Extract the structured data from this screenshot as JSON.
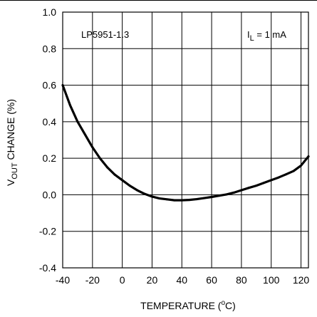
{
  "chart_data": {
    "type": "line",
    "xlabel_prefix": "TEMPERATURE (",
    "xlabel_sup": "o",
    "xlabel_suffix": "C)",
    "ylabel_main": "V",
    "ylabel_sub": "OUT",
    "ylabel_rest": " CHANGE (%)",
    "xlim": [
      -40,
      125
    ],
    "ylim": [
      -0.4,
      1.0
    ],
    "grid": true,
    "x_ticks": [
      -40,
      -20,
      0,
      20,
      40,
      60,
      80,
      100,
      120
    ],
    "x_tick_labels": [
      "-40",
      "-20",
      "0",
      "20",
      "40",
      "60",
      "80",
      "100",
      "120"
    ],
    "y_ticks": [
      -0.4,
      -0.2,
      0.0,
      0.2,
      0.4,
      0.6,
      0.8,
      1.0
    ],
    "y_tick_labels": [
      "-0.4",
      "-0.2",
      "0.0",
      "0.2",
      "0.4",
      "0.6",
      "0.8",
      "1.0"
    ],
    "annotations": {
      "device": "LP5951-1.3",
      "condition_main": "I",
      "condition_sub": "L",
      "condition_rest": " = 1 mA"
    },
    "series": [
      {
        "x": [
          -40,
          -35,
          -30,
          -25,
          -20,
          -15,
          -10,
          -5,
          0,
          5,
          10,
          15,
          20,
          25,
          30,
          35,
          40,
          45,
          50,
          55,
          60,
          65,
          70,
          75,
          80,
          85,
          90,
          95,
          100,
          105,
          110,
          115,
          120,
          125
        ],
        "y": [
          0.6,
          0.49,
          0.4,
          0.33,
          0.26,
          0.2,
          0.15,
          0.11,
          0.08,
          0.05,
          0.025,
          0.005,
          -0.01,
          -0.02,
          -0.025,
          -0.03,
          -0.03,
          -0.028,
          -0.024,
          -0.018,
          -0.012,
          -0.005,
          0.002,
          0.012,
          0.025,
          0.038,
          0.05,
          0.065,
          0.08,
          0.095,
          0.112,
          0.13,
          0.16,
          0.21
        ]
      }
    ]
  }
}
